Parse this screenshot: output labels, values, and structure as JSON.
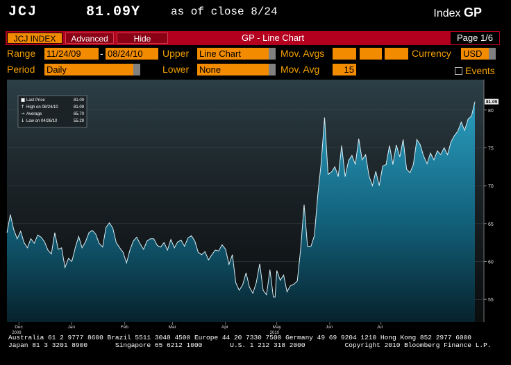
{
  "header": {
    "ticker": "JCJ",
    "price": "81.09Y",
    "as_of": "as of close  8/24",
    "index_label": "Index",
    "index_code": "GP"
  },
  "menubar": {
    "index_button": "JCJ INDEX",
    "advanced_button": "Advanced",
    "hide_button": "Hide",
    "title": "GP - Line Chart",
    "page": "Page 1/6"
  },
  "params": {
    "range_label": "Range",
    "range_start": "11/24/09",
    "range_sep": "-",
    "range_end": "08/24/10",
    "upper_label": "Upper",
    "upper_value": "Line Chart",
    "mov_avgs_label": "Mov. Avgs",
    "currency_label": "Currency",
    "currency_value": "USD",
    "period_label": "Period",
    "period_value": "Daily",
    "lower_label": "Lower",
    "lower_value": "None",
    "mov_avg_label": "Mov. Avg",
    "mov_avg_value": "15",
    "events_label": "Events"
  },
  "legend": {
    "rows": [
      {
        "label": "Last Price",
        "value": "81.09"
      },
      {
        "label": "High on 08/24/10",
        "value": "81.09"
      },
      {
        "label": "Average",
        "value": "65.70"
      },
      {
        "label": "Low on 04/26/10",
        "value": "55.29"
      }
    ]
  },
  "colors": {
    "accent": "#f28b00",
    "menubar": "#b3001e",
    "label": "#f2a000",
    "area_top": "#1e8aa8",
    "area_bottom": "#0b2f3c"
  },
  "chart_data": {
    "type": "area",
    "title": "",
    "xlabel": "",
    "ylabel": "",
    "ylim": [
      52,
      84
    ],
    "y_ticks": [
      55,
      60,
      65,
      70,
      75,
      80
    ],
    "last_value_tag": "81.09",
    "x_tick_labels": [
      {
        "label": "Dec",
        "year": "2009"
      },
      {
        "label": "Jan",
        "year": ""
      },
      {
        "label": "Feb",
        "year": ""
      },
      {
        "label": "Mar",
        "year": ""
      },
      {
        "label": "Apr",
        "year": ""
      },
      {
        "label": "May",
        "year": "2010"
      },
      {
        "label": "Jun",
        "year": ""
      },
      {
        "label": "Jul",
        "year": ""
      }
    ],
    "x_tick_days": [
      7,
      38,
      69,
      97,
      128,
      158,
      189,
      219
    ],
    "x_range_days": [
      0,
      274
    ],
    "series": [
      {
        "values": [
          [
            0,
            63.8
          ],
          [
            2,
            66.2
          ],
          [
            4,
            64.2
          ],
          [
            6,
            63.0
          ],
          [
            8,
            64.0
          ],
          [
            10,
            62.5
          ],
          [
            12,
            61.8
          ],
          [
            14,
            63.0
          ],
          [
            16,
            62.4
          ],
          [
            18,
            63.5
          ],
          [
            20,
            63.2
          ],
          [
            22,
            62.6
          ],
          [
            24,
            61.5
          ],
          [
            26,
            61.0
          ],
          [
            28,
            63.8
          ],
          [
            30,
            61.6
          ],
          [
            32,
            61.8
          ],
          [
            34,
            59.2
          ],
          [
            36,
            60.4
          ],
          [
            38,
            60.0
          ],
          [
            40,
            61.8
          ],
          [
            42,
            63.3
          ],
          [
            44,
            61.8
          ],
          [
            46,
            62.6
          ],
          [
            48,
            63.8
          ],
          [
            50,
            64.1
          ],
          [
            52,
            63.6
          ],
          [
            54,
            62.4
          ],
          [
            56,
            61.9
          ],
          [
            58,
            64.5
          ],
          [
            60,
            65.1
          ],
          [
            62,
            64.4
          ],
          [
            64,
            62.5
          ],
          [
            66,
            61.8
          ],
          [
            68,
            61.2
          ],
          [
            70,
            59.8
          ],
          [
            72,
            61.5
          ],
          [
            74,
            62.7
          ],
          [
            76,
            63.2
          ],
          [
            78,
            62.3
          ],
          [
            80,
            61.6
          ],
          [
            82,
            62.7
          ],
          [
            84,
            63.0
          ],
          [
            86,
            63.0
          ],
          [
            88,
            62.1
          ],
          [
            90,
            61.9
          ],
          [
            92,
            62.5
          ],
          [
            94,
            61.5
          ],
          [
            96,
            62.9
          ],
          [
            98,
            61.8
          ],
          [
            100,
            62.6
          ],
          [
            102,
            62.8
          ],
          [
            104,
            62.0
          ],
          [
            106,
            63.1
          ],
          [
            108,
            63.4
          ],
          [
            110,
            62.7
          ],
          [
            112,
            61.2
          ],
          [
            114,
            60.9
          ],
          [
            116,
            61.3
          ],
          [
            118,
            60.2
          ],
          [
            120,
            60.9
          ],
          [
            122,
            61.5
          ],
          [
            124,
            61.4
          ],
          [
            126,
            62.2
          ],
          [
            128,
            61.6
          ],
          [
            130,
            59.6
          ],
          [
            132,
            60.9
          ],
          [
            134,
            57.2
          ],
          [
            136,
            56.2
          ],
          [
            138,
            56.9
          ],
          [
            140,
            58.5
          ],
          [
            142,
            56.6
          ],
          [
            144,
            55.8
          ],
          [
            146,
            57.2
          ],
          [
            148,
            59.7
          ],
          [
            150,
            56.2
          ],
          [
            152,
            55.6
          ],
          [
            154,
            58.9
          ],
          [
            156,
            55.3
          ],
          [
            157,
            55.3
          ],
          [
            158,
            58.8
          ],
          [
            160,
            57.5
          ],
          [
            162,
            58.2
          ],
          [
            164,
            56.0
          ],
          [
            166,
            56.8
          ],
          [
            168,
            57.0
          ],
          [
            170,
            57.4
          ],
          [
            172,
            61.7
          ],
          [
            174,
            67.5
          ],
          [
            176,
            62.0
          ],
          [
            178,
            62.0
          ],
          [
            180,
            63.4
          ],
          [
            182,
            68.8
          ],
          [
            184,
            73.0
          ],
          [
            186,
            79.0
          ],
          [
            188,
            71.5
          ],
          [
            190,
            71.8
          ],
          [
            192,
            72.5
          ],
          [
            194,
            71.2
          ],
          [
            196,
            75.3
          ],
          [
            198,
            71.2
          ],
          [
            200,
            73.3
          ],
          [
            202,
            74.0
          ],
          [
            204,
            72.8
          ],
          [
            206,
            76.2
          ],
          [
            208,
            73.4
          ],
          [
            210,
            74.1
          ],
          [
            212,
            71.3
          ],
          [
            214,
            70.0
          ],
          [
            216,
            71.9
          ],
          [
            218,
            70.0
          ],
          [
            220,
            72.6
          ],
          [
            222,
            72.8
          ],
          [
            224,
            75.3
          ],
          [
            226,
            72.8
          ],
          [
            228,
            75.4
          ],
          [
            230,
            73.8
          ],
          [
            232,
            76.1
          ],
          [
            234,
            72.2
          ],
          [
            236,
            71.7
          ],
          [
            238,
            72.8
          ],
          [
            240,
            76.1
          ],
          [
            242,
            75.4
          ],
          [
            244,
            73.9
          ],
          [
            246,
            72.9
          ],
          [
            248,
            74.3
          ],
          [
            250,
            73.4
          ],
          [
            252,
            74.6
          ],
          [
            254,
            74.1
          ],
          [
            256,
            75.0
          ],
          [
            258,
            74.1
          ],
          [
            260,
            75.8
          ],
          [
            262,
            76.6
          ],
          [
            264,
            77.2
          ],
          [
            266,
            78.4
          ],
          [
            268,
            77.3
          ],
          [
            270,
            78.8
          ],
          [
            272,
            79.2
          ],
          [
            274,
            81.1
          ]
        ]
      }
    ]
  },
  "footer": {
    "line1": "Australia 61 2 9777 8600 Brazil 5511 3048 4500 Europe 44 20 7330 7500 Germany 49 69 9204 1210 Hong Kong 852 2977 6000",
    "line2": "Japan 81 3 3201 8900       Singapore 65 6212 1000       U.S. 1 212 318 2000          Copyright 2010 Bloomberg Finance L.P."
  }
}
